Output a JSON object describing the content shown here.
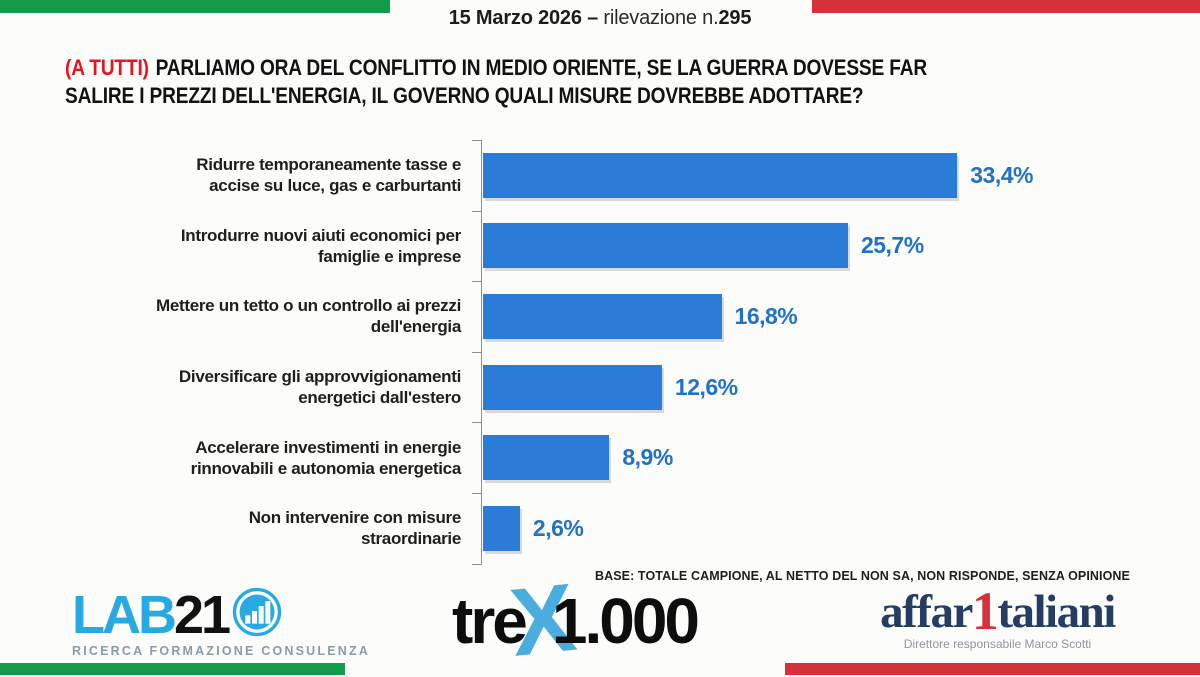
{
  "header": {
    "date_part": "15 Marzo 2026 –",
    "label_part": " rilevazione n.",
    "number": "295"
  },
  "question": {
    "audience_tag": "(A TUTTI)",
    "line1": "PARLIAMO ORA DEL CONFLITTO IN MEDIO ORIENTE, SE LA GUERRA DOVESSE FAR",
    "line2": "SALIRE I PREZZI DELL'ENERGIA, IL GOVERNO QUALI MISURE DOVREBBE ADOTTARE?"
  },
  "chart_data": {
    "type": "bar",
    "orientation": "horizontal",
    "title": "(A TUTTI) PARLIAMO ORA DEL CONFLITTO IN MEDIO ORIENTE, SE LA GUERRA DOVESSE FAR SALIRE I PREZZI DELL'ENERGIA, IL GOVERNO QUALI MISURE DOVREBBE ADOTTARE?",
    "categories": [
      "Ridurre temporaneamente tasse e accise su luce, gas e carburtanti",
      "Introdurre nuovi aiuti economici per famiglie e imprese",
      "Mettere un tetto o un controllo ai prezzi dell'energia",
      "Diversificare gli approvvigionamenti energetici dall'estero",
      "Accelerare investimenti in energie rinnovabili e autonomia energetica",
      "Non intervenire con misure straordinarie"
    ],
    "category_lines": [
      [
        "Ridurre temporaneamente tasse e",
        "accise su luce, gas e carburtanti"
      ],
      [
        "Introdurre nuovi aiuti economici per",
        "famiglie e imprese"
      ],
      [
        "Mettere un tetto o un controllo ai prezzi",
        "dell'energia"
      ],
      [
        "Diversificare gli approvvigionamenti",
        "energetici dall'estero"
      ],
      [
        "Accelerare investimenti in energie",
        "rinnovabili e autonomia energetica"
      ],
      [
        "Non intervenire con misure",
        "straordinarie"
      ]
    ],
    "values": [
      33.4,
      25.7,
      16.8,
      12.6,
      8.9,
      2.6
    ],
    "value_labels": [
      "33,4%",
      "25,7%",
      "16,8%",
      "12,6%",
      "8,9%",
      "2,6%"
    ],
    "xlim": [
      0,
      35
    ],
    "grid": false,
    "legend": false,
    "bar_color": "#2b7cd7",
    "value_color": "#2171c6",
    "note": "BASE: TOTALE CAMPIONE, AL NETTO DEL NON SA, NON RISPONDE, SENZA OPINIONE"
  },
  "footer": {
    "lab21": {
      "name_part1": "LAB",
      "name_part2": "21",
      "tagline": "RICERCA FORMAZIONE CONSULENZA"
    },
    "trex": {
      "part1": "tre",
      "x": "X",
      "part2": "1.000"
    },
    "affaritaliani": {
      "part1": "affar",
      "accent": "1",
      "part2": "taliani",
      "subtitle": "Direttore responsabile Marco Scotti"
    }
  },
  "colors": {
    "flag_green": "#149a4b",
    "flag_red": "#d5313a",
    "audience_tag_red": "#e8131d",
    "bar_blue": "#2b7cd7",
    "value_blue": "#2171c6",
    "lab21_blue": "#29a9e1",
    "trex_x_blue": "#49aede",
    "affari_navy": "#253d63",
    "affari_red": "#d5313a"
  }
}
